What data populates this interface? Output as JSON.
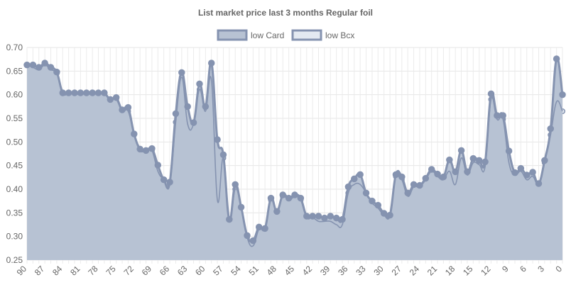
{
  "chart_data": {
    "type": "line",
    "title": "List market price last 3 months Regular foil",
    "xlabel": "",
    "ylabel": "",
    "ylim": [
      0.25,
      0.7
    ],
    "y_ticks": [
      "0.70",
      "0.65",
      "0.60",
      "0.55",
      "0.50",
      "0.45",
      "0.40",
      "0.35",
      "0.30",
      "0.25"
    ],
    "x_ticks": [
      "90",
      "87",
      "84",
      "81",
      "78",
      "75",
      "72",
      "69",
      "66",
      "63",
      "60",
      "57",
      "54",
      "51",
      "48",
      "45",
      "42",
      "39",
      "36",
      "33",
      "30",
      "27",
      "24",
      "21",
      "18",
      "15",
      "12",
      "9",
      "6",
      "3",
      "0"
    ],
    "x_order": "descending days, 90 on the left to 0 on the right",
    "grid": true,
    "legend_position": "top",
    "series": [
      {
        "name": "low Card",
        "color": "#8593b0",
        "fill": "#b7c2d3",
        "x": [
          90,
          89,
          88,
          87,
          86,
          85,
          84,
          83,
          82,
          81,
          80,
          79,
          78,
          77,
          76,
          75,
          74,
          73,
          72,
          71,
          70,
          69,
          68,
          67,
          66,
          65,
          64,
          63,
          62,
          61,
          60,
          59,
          58,
          57,
          56,
          55,
          54,
          53,
          52,
          51,
          50,
          49,
          48,
          47,
          46,
          45,
          44,
          43,
          42,
          41,
          40,
          39,
          38,
          37,
          36,
          35,
          34,
          33,
          32,
          31,
          30,
          29,
          28,
          27,
          26,
          25,
          24,
          23,
          22,
          21,
          20,
          19,
          18,
          17,
          16,
          15,
          14,
          13,
          12,
          11,
          10,
          9,
          8,
          7,
          6,
          5,
          4,
          3,
          2,
          1,
          0
        ],
        "values": [
          0.663,
          0.663,
          0.658,
          0.667,
          0.658,
          0.648,
          0.604,
          0.604,
          0.604,
          0.604,
          0.604,
          0.604,
          0.604,
          0.604,
          0.59,
          0.594,
          0.568,
          0.573,
          0.517,
          0.485,
          0.482,
          0.486,
          0.451,
          0.42,
          0.415,
          0.56,
          0.647,
          0.575,
          0.541,
          0.623,
          0.575,
          0.667,
          0.505,
          0.473,
          0.336,
          0.41,
          0.362,
          0.302,
          0.291,
          0.32,
          0.317,
          0.381,
          0.353,
          0.388,
          0.381,
          0.388,
          0.381,
          0.343,
          0.343,
          0.343,
          0.339,
          0.343,
          0.339,
          0.336,
          0.405,
          0.422,
          0.431,
          0.392,
          0.375,
          0.366,
          0.349,
          0.345,
          0.431,
          0.426,
          0.392,
          0.41,
          0.408,
          0.423,
          0.442,
          0.432,
          0.426,
          0.462,
          0.437,
          0.482,
          0.437,
          0.465,
          0.461,
          0.458,
          0.602,
          0.556,
          0.556,
          0.481,
          0.435,
          0.444,
          0.43,
          0.436,
          0.412,
          0.461,
          0.528,
          0.676,
          0.6
        ]
      },
      {
        "name": "low Bcx",
        "color": "#8593b0",
        "fill": "#e3e9f1",
        "x": [
          90,
          89,
          88,
          87,
          86,
          85,
          84,
          83,
          82,
          81,
          80,
          79,
          78,
          77,
          76,
          75,
          74,
          73,
          72,
          71,
          70,
          69,
          68,
          67,
          66,
          65,
          64,
          63,
          62,
          61,
          60,
          59,
          58,
          57,
          56,
          55,
          54,
          53,
          52,
          51,
          50,
          49,
          48,
          47,
          46,
          45,
          44,
          43,
          42,
          41,
          40,
          39,
          38,
          37,
          36,
          35,
          34,
          33,
          32,
          31,
          30,
          29,
          28,
          27,
          26,
          25,
          24,
          23,
          22,
          21,
          20,
          19,
          18,
          17,
          16,
          15,
          14,
          13,
          12,
          11,
          10,
          9,
          8,
          7,
          6,
          5,
          4,
          3,
          2,
          1,
          0
        ],
        "values": [
          0.663,
          0.658,
          0.653,
          0.663,
          0.653,
          0.645,
          0.604,
          0.604,
          0.601,
          0.601,
          0.601,
          0.601,
          0.601,
          0.601,
          0.59,
          0.59,
          0.565,
          0.565,
          0.515,
          0.482,
          0.482,
          0.482,
          0.438,
          0.42,
          0.41,
          0.542,
          0.637,
          0.538,
          0.538,
          0.611,
          0.565,
          0.63,
          0.377,
          0.466,
          0.332,
          0.4,
          0.362,
          0.298,
          0.28,
          0.316,
          0.316,
          0.377,
          0.353,
          0.384,
          0.377,
          0.384,
          0.377,
          0.34,
          0.34,
          0.332,
          0.332,
          0.332,
          0.325,
          0.325,
          0.392,
          0.41,
          0.41,
          0.392,
          0.371,
          0.36,
          0.345,
          0.345,
          0.427,
          0.42,
          0.385,
          0.405,
          0.405,
          0.42,
          0.438,
          0.427,
          0.42,
          0.438,
          0.41,
          0.466,
          0.43,
          0.456,
          0.452,
          0.448,
          0.59,
          0.548,
          0.548,
          0.456,
          0.43,
          0.438,
          0.42,
          0.427,
          0.41,
          0.456,
          0.515,
          0.585,
          0.565
        ]
      }
    ]
  }
}
